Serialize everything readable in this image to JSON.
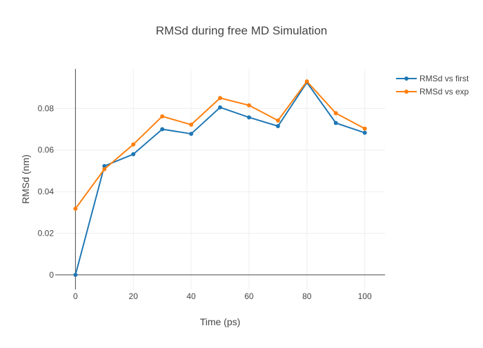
{
  "chart_data": {
    "type": "line",
    "title": "RMSd during free MD Simulation",
    "xlabel": "Time (ps)",
    "ylabel": "RMSd (nm)",
    "xlim": [
      -7,
      107
    ],
    "ylim": [
      -0.007,
      0.099
    ],
    "x_ticks": [
      0,
      20,
      40,
      60,
      80,
      100
    ],
    "y_ticks": [
      0,
      0.02,
      0.04,
      0.06,
      0.08
    ],
    "y_tick_labels": [
      "0",
      "0.02",
      "0.04",
      "0.06",
      "0.08"
    ],
    "grid": true,
    "legend_position": "top-right",
    "x": [
      0,
      10,
      20,
      30,
      40,
      50,
      60,
      70,
      80,
      90,
      100
    ],
    "series": [
      {
        "name": "RMSd vs first",
        "color": "#1f77b4",
        "values": [
          0.0,
          0.0523,
          0.058,
          0.07,
          0.0678,
          0.0805,
          0.0757,
          0.0715,
          0.0925,
          0.073,
          0.0683
        ]
      },
      {
        "name": "RMSd vs exp",
        "color": "#ff7f0e",
        "values": [
          0.0318,
          0.0508,
          0.0627,
          0.0762,
          0.0722,
          0.085,
          0.0815,
          0.0742,
          0.093,
          0.0777,
          0.0703
        ]
      }
    ]
  }
}
